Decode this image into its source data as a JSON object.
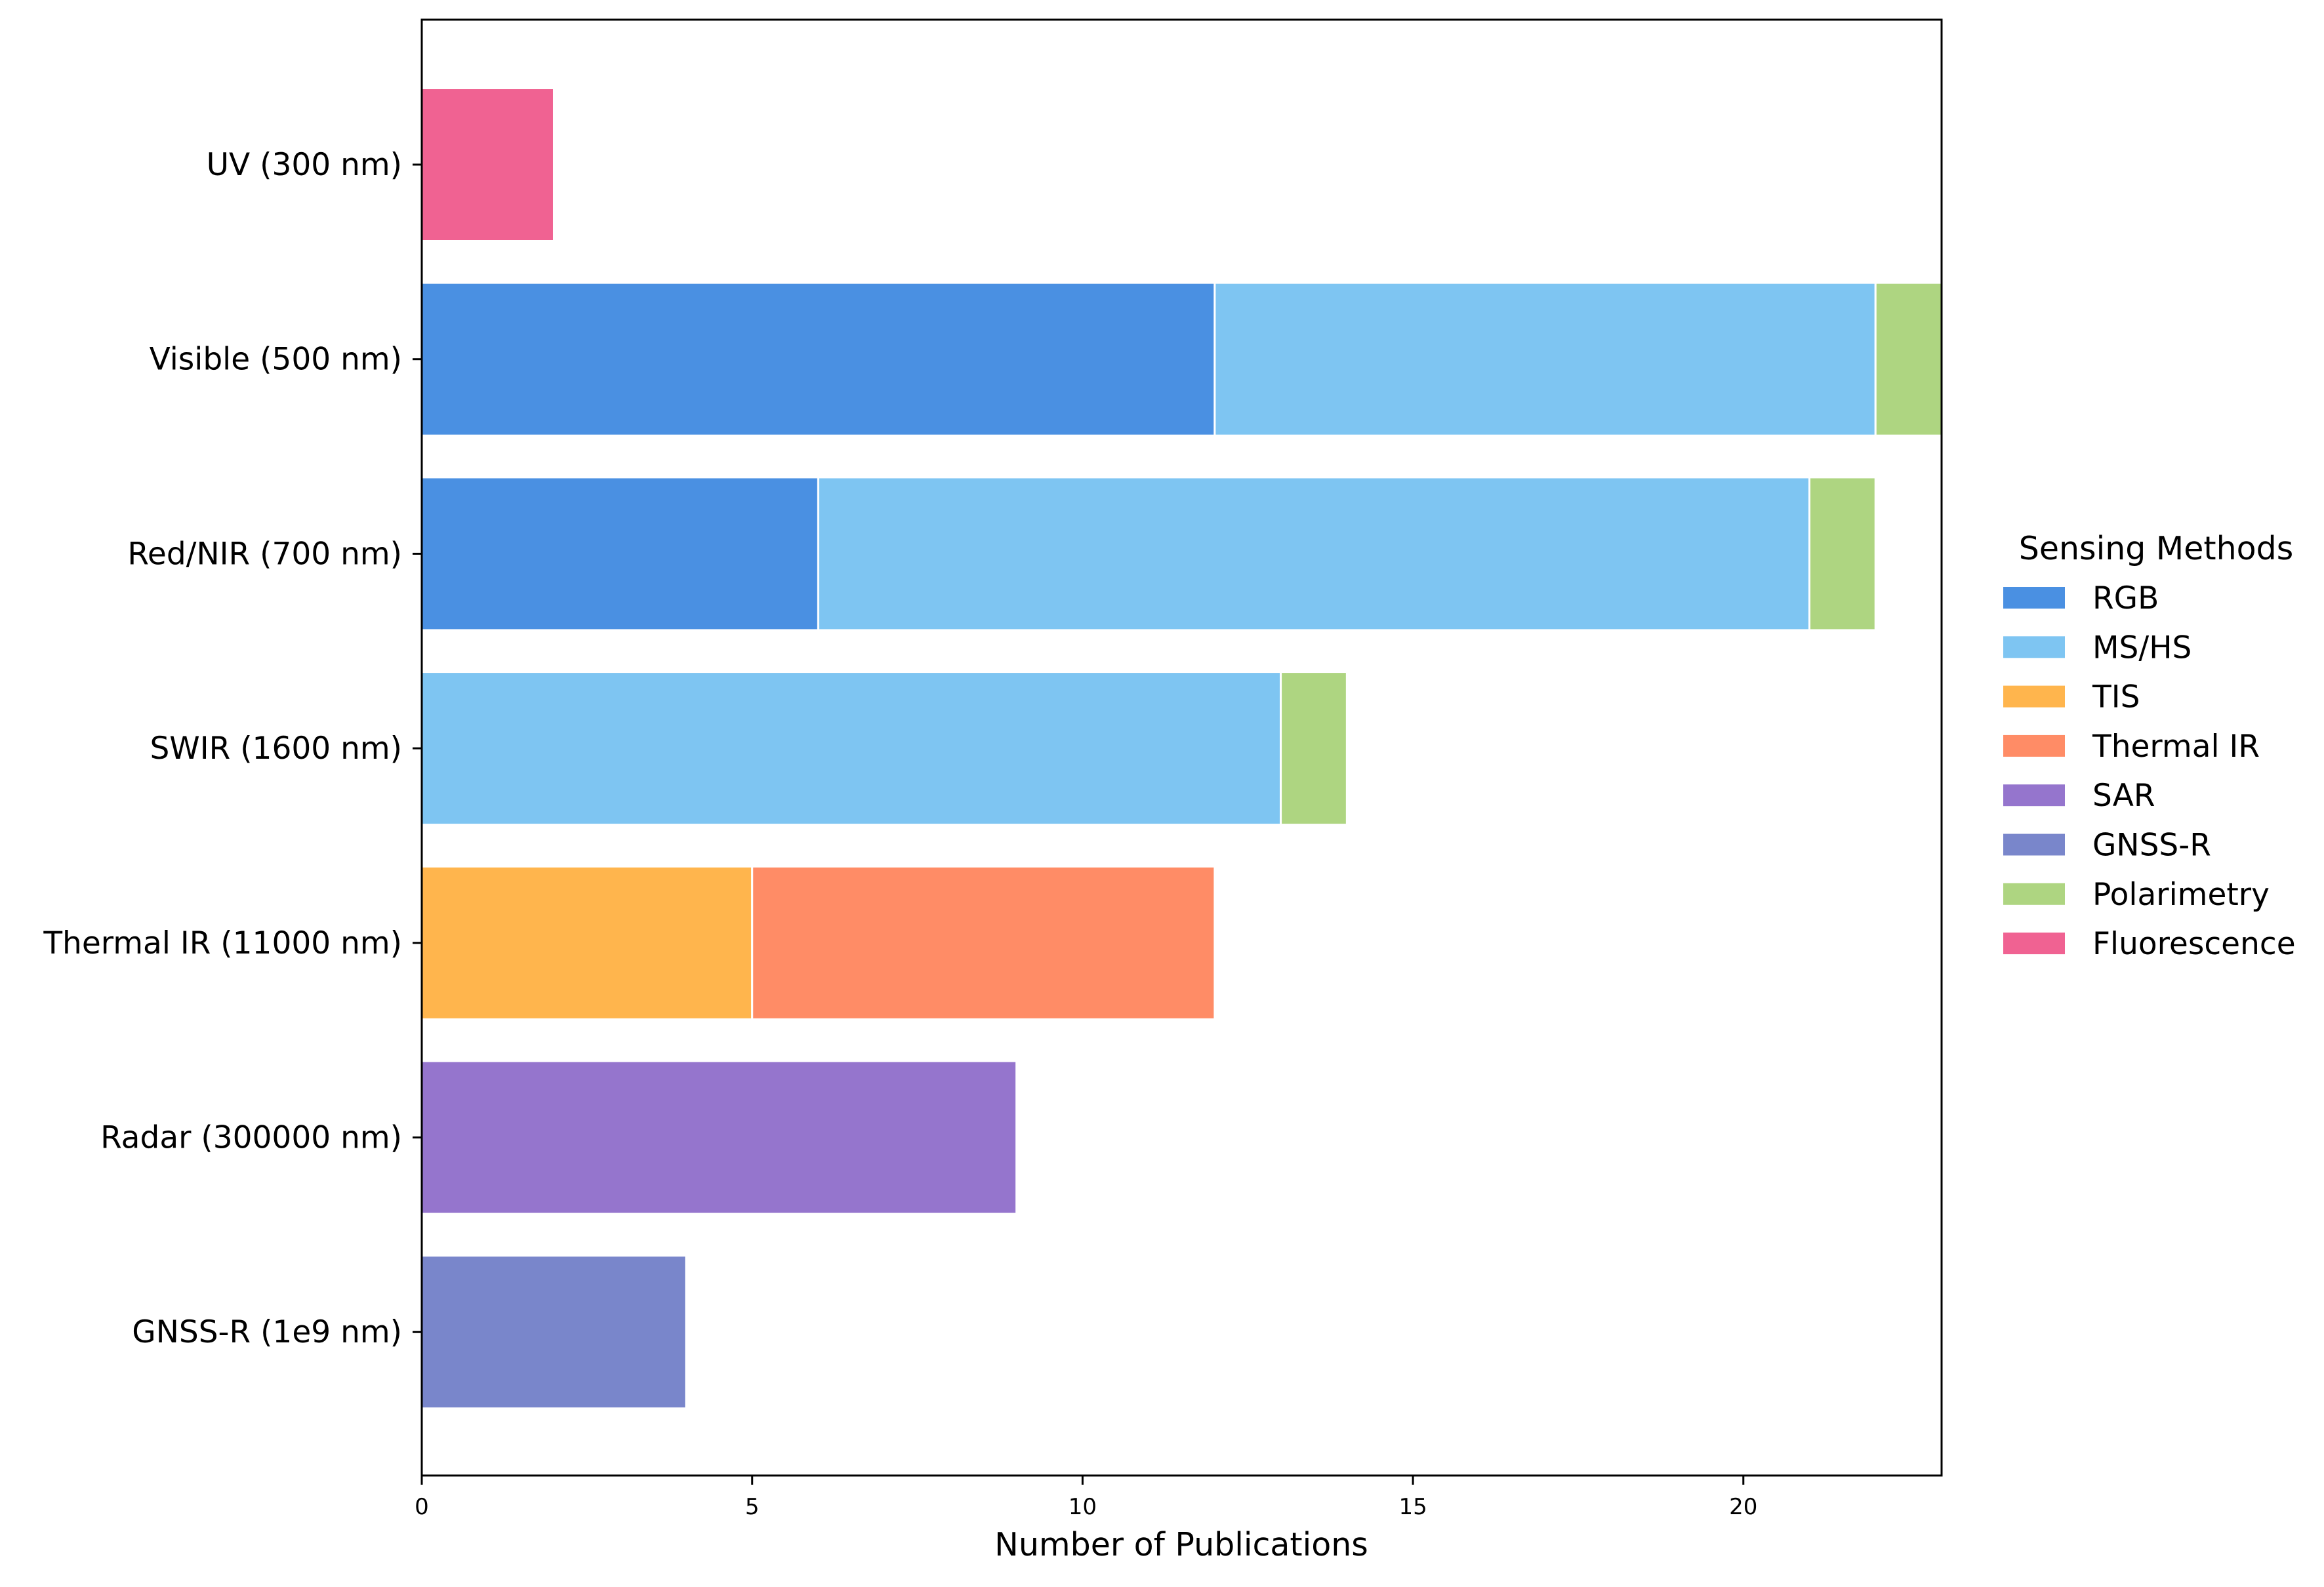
{
  "chart_data": {
    "type": "bar",
    "orientation": "horizontal",
    "stacked": true,
    "title": "",
    "xlabel": "Number of Publications",
    "ylabel": "",
    "xlim": [
      0,
      23
    ],
    "xticks": [
      0,
      5,
      10,
      15,
      20
    ],
    "grid": false,
    "categories": [
      "UV (300 nm)",
      "Visible (500 nm)",
      "Red/NIR (700 nm)",
      "SWIR (1600 nm)",
      "Thermal IR (11000 nm)",
      "Radar (300000 nm)",
      "GNSS-R (1e9 nm)"
    ],
    "series": [
      {
        "name": "RGB",
        "color": "#4A90E2",
        "values": [
          0,
          12,
          6,
          0,
          0,
          0,
          0
        ]
      },
      {
        "name": "MS/HS",
        "color": "#7EC5F2",
        "values": [
          0,
          10,
          15,
          13,
          0,
          0,
          0
        ]
      },
      {
        "name": "TIS",
        "color": "#FFB54D",
        "values": [
          0,
          0,
          0,
          0,
          5,
          0,
          0
        ]
      },
      {
        "name": "Thermal IR",
        "color": "#FF8C66",
        "values": [
          0,
          0,
          0,
          0,
          7,
          0,
          0
        ]
      },
      {
        "name": "SAR",
        "color": "#9575CD",
        "values": [
          0,
          0,
          0,
          0,
          0,
          9,
          0
        ]
      },
      {
        "name": "GNSS-R",
        "color": "#7986CB",
        "values": [
          0,
          0,
          0,
          0,
          0,
          0,
          4
        ]
      },
      {
        "name": "Polarimetry",
        "color": "#AED581",
        "values": [
          0,
          1,
          1,
          1,
          0,
          0,
          0
        ]
      },
      {
        "name": "Fluorescence",
        "color": "#F06292",
        "values": [
          2,
          0,
          0,
          0,
          0,
          0,
          0
        ]
      }
    ],
    "legend": {
      "title": "Sensing Methods",
      "position": "right"
    }
  }
}
